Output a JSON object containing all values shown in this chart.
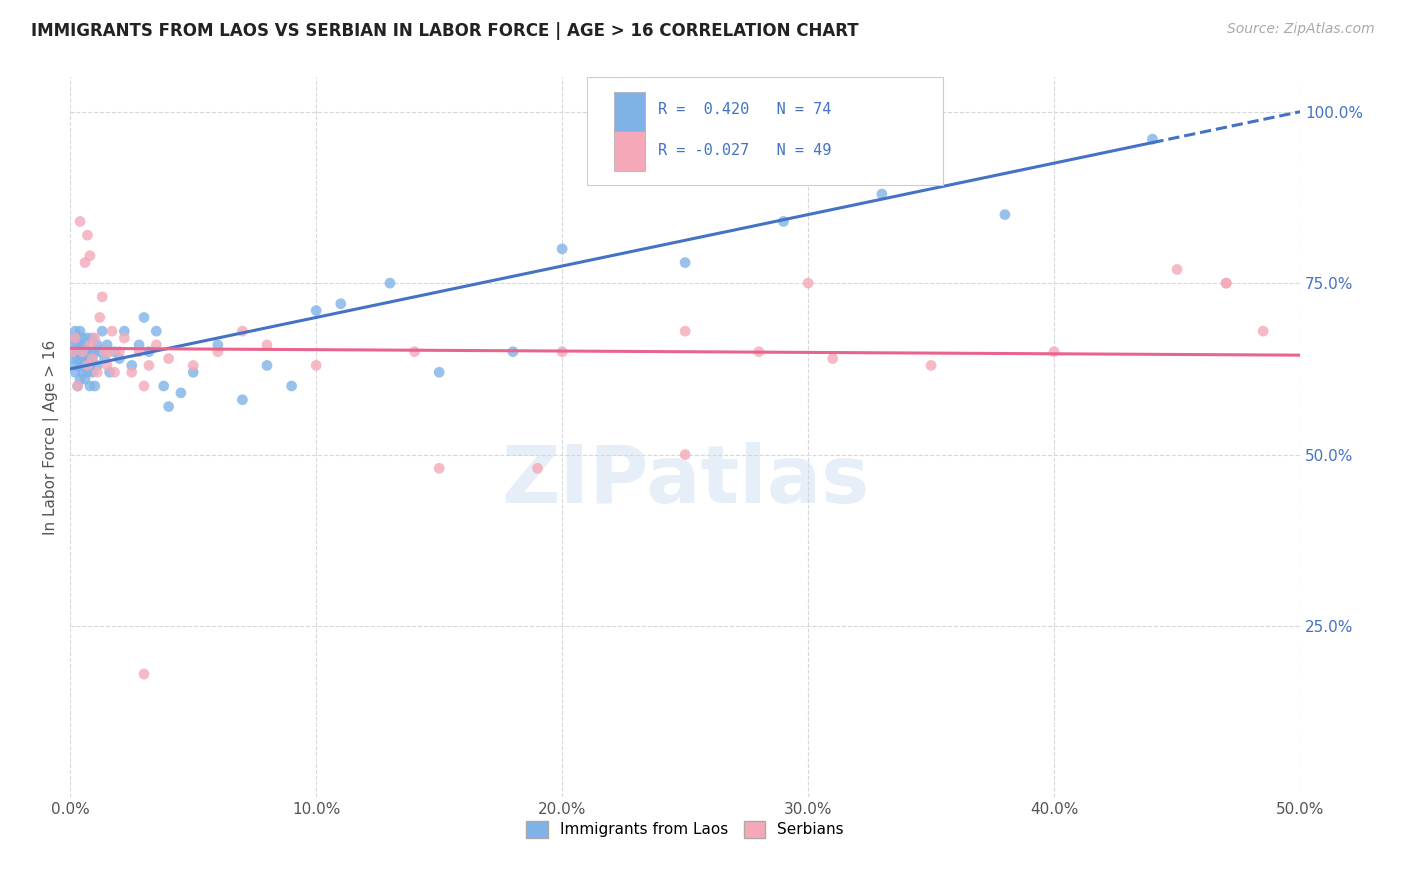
{
  "title": "IMMIGRANTS FROM LAOS VS SERBIAN IN LABOR FORCE | AGE > 16 CORRELATION CHART",
  "source_text": "Source: ZipAtlas.com",
  "ylabel": "In Labor Force | Age > 16",
  "xlim": [
    0.0,
    0.5
  ],
  "ylim": [
    0.0,
    1.05
  ],
  "xtick_vals": [
    0.0,
    0.1,
    0.2,
    0.3,
    0.4,
    0.5
  ],
  "ytick_right_labels": [
    "25.0%",
    "50.0%",
    "75.0%",
    "100.0%"
  ],
  "ytick_right_vals": [
    0.25,
    0.5,
    0.75,
    1.0
  ],
  "legend_line1": "R =  0.420   N = 74",
  "legend_line2": "R = -0.027   N = 49",
  "laos_color": "#7fb3e8",
  "serbian_color": "#f4a8b8",
  "trend_laos_color": "#4472c4",
  "trend_serbian_color": "#e8648c",
  "background_color": "#ffffff",
  "watermark": "ZIPatlas",
  "grid_color": "#d8d8d8",
  "laos_x": [
    0.001,
    0.001,
    0.001,
    0.002,
    0.002,
    0.002,
    0.002,
    0.002,
    0.003,
    0.003,
    0.003,
    0.003,
    0.003,
    0.004,
    0.004,
    0.004,
    0.004,
    0.004,
    0.005,
    0.005,
    0.005,
    0.005,
    0.005,
    0.006,
    0.006,
    0.006,
    0.006,
    0.006,
    0.007,
    0.007,
    0.007,
    0.007,
    0.008,
    0.008,
    0.008,
    0.009,
    0.009,
    0.009,
    0.01,
    0.01,
    0.011,
    0.011,
    0.012,
    0.013,
    0.014,
    0.015,
    0.016,
    0.018,
    0.02,
    0.022,
    0.025,
    0.028,
    0.03,
    0.032,
    0.035,
    0.038,
    0.04,
    0.045,
    0.05,
    0.06,
    0.07,
    0.08,
    0.09,
    0.1,
    0.11,
    0.13,
    0.15,
    0.18,
    0.2,
    0.25,
    0.29,
    0.33,
    0.38,
    0.44
  ],
  "laos_y": [
    0.65,
    0.67,
    0.64,
    0.66,
    0.62,
    0.68,
    0.63,
    0.65,
    0.64,
    0.66,
    0.6,
    0.67,
    0.65,
    0.63,
    0.65,
    0.68,
    0.61,
    0.64,
    0.62,
    0.66,
    0.64,
    0.67,
    0.65,
    0.63,
    0.66,
    0.61,
    0.64,
    0.65,
    0.62,
    0.65,
    0.64,
    0.67,
    0.6,
    0.63,
    0.65,
    0.62,
    0.64,
    0.67,
    0.6,
    0.65,
    0.63,
    0.66,
    0.65,
    0.68,
    0.64,
    0.66,
    0.62,
    0.65,
    0.64,
    0.68,
    0.63,
    0.66,
    0.7,
    0.65,
    0.68,
    0.6,
    0.57,
    0.59,
    0.62,
    0.66,
    0.58,
    0.63,
    0.6,
    0.71,
    0.72,
    0.75,
    0.62,
    0.65,
    0.8,
    0.78,
    0.84,
    0.88,
    0.85,
    0.96
  ],
  "serbian_x": [
    0.001,
    0.002,
    0.003,
    0.004,
    0.005,
    0.006,
    0.007,
    0.007,
    0.008,
    0.008,
    0.009,
    0.01,
    0.011,
    0.012,
    0.013,
    0.014,
    0.015,
    0.016,
    0.017,
    0.018,
    0.02,
    0.022,
    0.025,
    0.028,
    0.03,
    0.032,
    0.035,
    0.04,
    0.05,
    0.06,
    0.07,
    0.08,
    0.1,
    0.14,
    0.15,
    0.2,
    0.25,
    0.28,
    0.31,
    0.35,
    0.4,
    0.45,
    0.47,
    0.485,
    0.3,
    0.03,
    0.25,
    0.19,
    0.47
  ],
  "serbian_y": [
    0.65,
    0.67,
    0.6,
    0.84,
    0.65,
    0.78,
    0.63,
    0.82,
    0.66,
    0.79,
    0.64,
    0.67,
    0.62,
    0.7,
    0.73,
    0.65,
    0.63,
    0.65,
    0.68,
    0.62,
    0.65,
    0.67,
    0.62,
    0.65,
    0.6,
    0.63,
    0.66,
    0.64,
    0.63,
    0.65,
    0.68,
    0.66,
    0.63,
    0.65,
    0.48,
    0.65,
    0.68,
    0.65,
    0.64,
    0.63,
    0.65,
    0.77,
    0.75,
    0.68,
    0.75,
    0.18,
    0.5,
    0.48,
    0.75
  ]
}
